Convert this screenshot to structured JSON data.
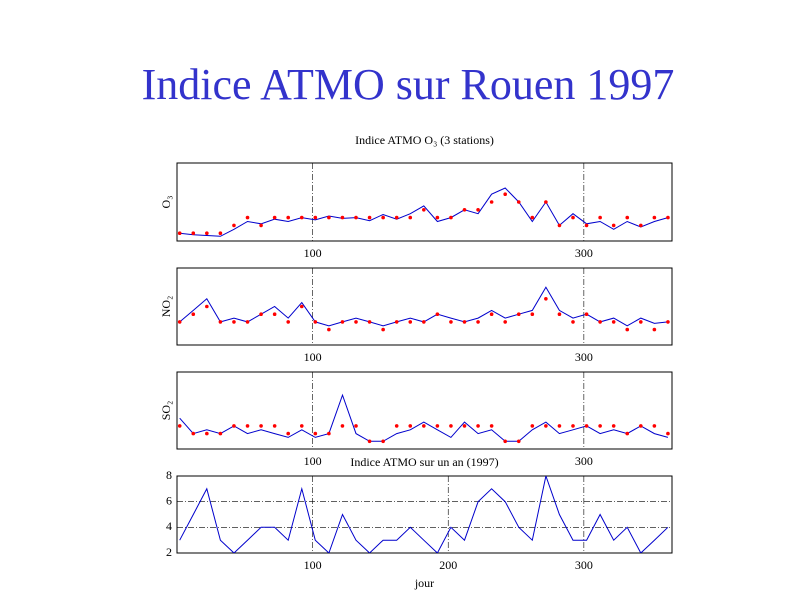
{
  "title": "Indice ATMO sur Rouen 1997",
  "chart_data": [
    {
      "type": "line",
      "title": "Indice ATMO O₃ (3 stations)",
      "ylabel": "O₃",
      "x": [
        2,
        12,
        22,
        32,
        42,
        52,
        62,
        72,
        82,
        92,
        102,
        112,
        122,
        132,
        142,
        152,
        162,
        172,
        182,
        192,
        202,
        212,
        222,
        232,
        242,
        252,
        262,
        272,
        282,
        292,
        302,
        312,
        322,
        332,
        342,
        352,
        362
      ],
      "xlim": [
        0,
        365
      ],
      "xticks": [
        100,
        300
      ],
      "ylim": [
        0,
        10
      ],
      "grid": true,
      "series": [
        {
          "color": "#0000cc",
          "marker": "line",
          "values": [
            1,
            0.8,
            0.7,
            0.6,
            1.5,
            2.5,
            2.2,
            2.8,
            2.5,
            3,
            2.7,
            3.2,
            2.9,
            3,
            2.6,
            3.4,
            2.8,
            3.5,
            4.5,
            2.5,
            3,
            4,
            3.5,
            6,
            6.8,
            5,
            2.5,
            5,
            2,
            3.5,
            2.2,
            2.5,
            1.5,
            2.5,
            1.8,
            2.5,
            3
          ]
        },
        {
          "color": "#ff0000",
          "marker": "dot",
          "values": [
            1,
            1,
            1,
            1,
            2,
            3,
            2,
            3,
            3,
            3,
            3,
            3,
            3,
            3,
            3,
            3,
            3,
            3,
            4,
            3,
            3,
            4,
            4,
            5,
            6,
            5,
            3,
            5,
            2,
            3,
            2,
            3,
            2,
            3,
            2,
            3,
            3
          ]
        }
      ]
    },
    {
      "type": "line",
      "ylabel": "NO₂",
      "x": [
        2,
        12,
        22,
        32,
        42,
        52,
        62,
        72,
        82,
        92,
        102,
        112,
        122,
        132,
        142,
        152,
        162,
        172,
        182,
        192,
        202,
        212,
        222,
        232,
        242,
        252,
        262,
        272,
        282,
        292,
        302,
        312,
        322,
        332,
        342,
        352,
        362
      ],
      "xlim": [
        0,
        365
      ],
      "xticks": [
        100,
        300
      ],
      "ylim": [
        0,
        10
      ],
      "grid": true,
      "series": [
        {
          "color": "#0000cc",
          "marker": "line",
          "values": [
            3,
            4.5,
            6,
            3,
            3.5,
            3,
            4,
            5,
            3.5,
            5.5,
            3,
            2.5,
            3,
            3.5,
            3,
            2.5,
            3,
            3.5,
            3,
            4,
            3.5,
            3,
            3.5,
            4.5,
            3.5,
            4,
            4.5,
            7.5,
            4.5,
            3.5,
            4,
            3,
            3.5,
            2.5,
            3.5,
            2.8,
            3
          ]
        },
        {
          "color": "#ff0000",
          "marker": "dot",
          "values": [
            3,
            4,
            5,
            3,
            3,
            3,
            4,
            4,
            3,
            5,
            3,
            2,
            3,
            3,
            3,
            2,
            3,
            3,
            3,
            4,
            3,
            3,
            3,
            4,
            3,
            4,
            4,
            6,
            4,
            3,
            4,
            3,
            3,
            2,
            3,
            2,
            3
          ]
        }
      ]
    },
    {
      "type": "line",
      "ylabel": "SO₂",
      "x": [
        2,
        12,
        22,
        32,
        42,
        52,
        62,
        72,
        82,
        92,
        102,
        112,
        122,
        132,
        142,
        152,
        162,
        172,
        182,
        192,
        202,
        212,
        222,
        232,
        242,
        252,
        262,
        272,
        282,
        292,
        302,
        312,
        322,
        332,
        342,
        352,
        362
      ],
      "xlim": [
        0,
        365
      ],
      "xticks": [
        100,
        300
      ],
      "ylim": [
        0,
        10
      ],
      "grid": true,
      "series": [
        {
          "color": "#0000cc",
          "marker": "line",
          "values": [
            4,
            2,
            2.5,
            2,
            3,
            2,
            2.5,
            2,
            1.5,
            2.5,
            1.5,
            2,
            7,
            2,
            1,
            1,
            2,
            2.5,
            3.5,
            2.5,
            1.5,
            3.5,
            2,
            2.5,
            1,
            1,
            2.5,
            3.5,
            2,
            2.5,
            3,
            2,
            2.5,
            2,
            3,
            2,
            1.5
          ]
        },
        {
          "color": "#ff0000",
          "marker": "dot",
          "values": [
            3,
            2,
            2,
            2,
            3,
            3,
            3,
            3,
            2,
            3,
            2,
            2,
            3,
            3,
            1,
            1,
            3,
            3,
            3,
            3,
            3,
            3,
            3,
            3,
            1,
            1,
            3,
            3,
            3,
            3,
            3,
            3,
            3,
            2,
            3,
            3,
            2
          ]
        }
      ]
    },
    {
      "type": "line",
      "title": "Indice ATMO sur un an (1997)",
      "xlabel": "jour",
      "x": [
        2,
        12,
        22,
        32,
        42,
        52,
        62,
        72,
        82,
        92,
        102,
        112,
        122,
        132,
        142,
        152,
        162,
        172,
        182,
        192,
        202,
        212,
        222,
        232,
        242,
        252,
        262,
        272,
        282,
        292,
        302,
        312,
        322,
        332,
        342,
        352,
        362
      ],
      "xlim": [
        0,
        365
      ],
      "xticks": [
        100,
        200,
        300
      ],
      "ylim": [
        2,
        8
      ],
      "yticks": [
        2,
        4,
        6,
        8
      ],
      "grid": true,
      "series": [
        {
          "color": "#0000cc",
          "marker": "line",
          "values": [
            3,
            5,
            7,
            3,
            2,
            3,
            4,
            4,
            3,
            7,
            3,
            2,
            5,
            3,
            2,
            3,
            3,
            4,
            3,
            2,
            4,
            3,
            6,
            7,
            6,
            4,
            3,
            8,
            5,
            3,
            3,
            5,
            3,
            4,
            2,
            3,
            4
          ]
        }
      ]
    }
  ]
}
